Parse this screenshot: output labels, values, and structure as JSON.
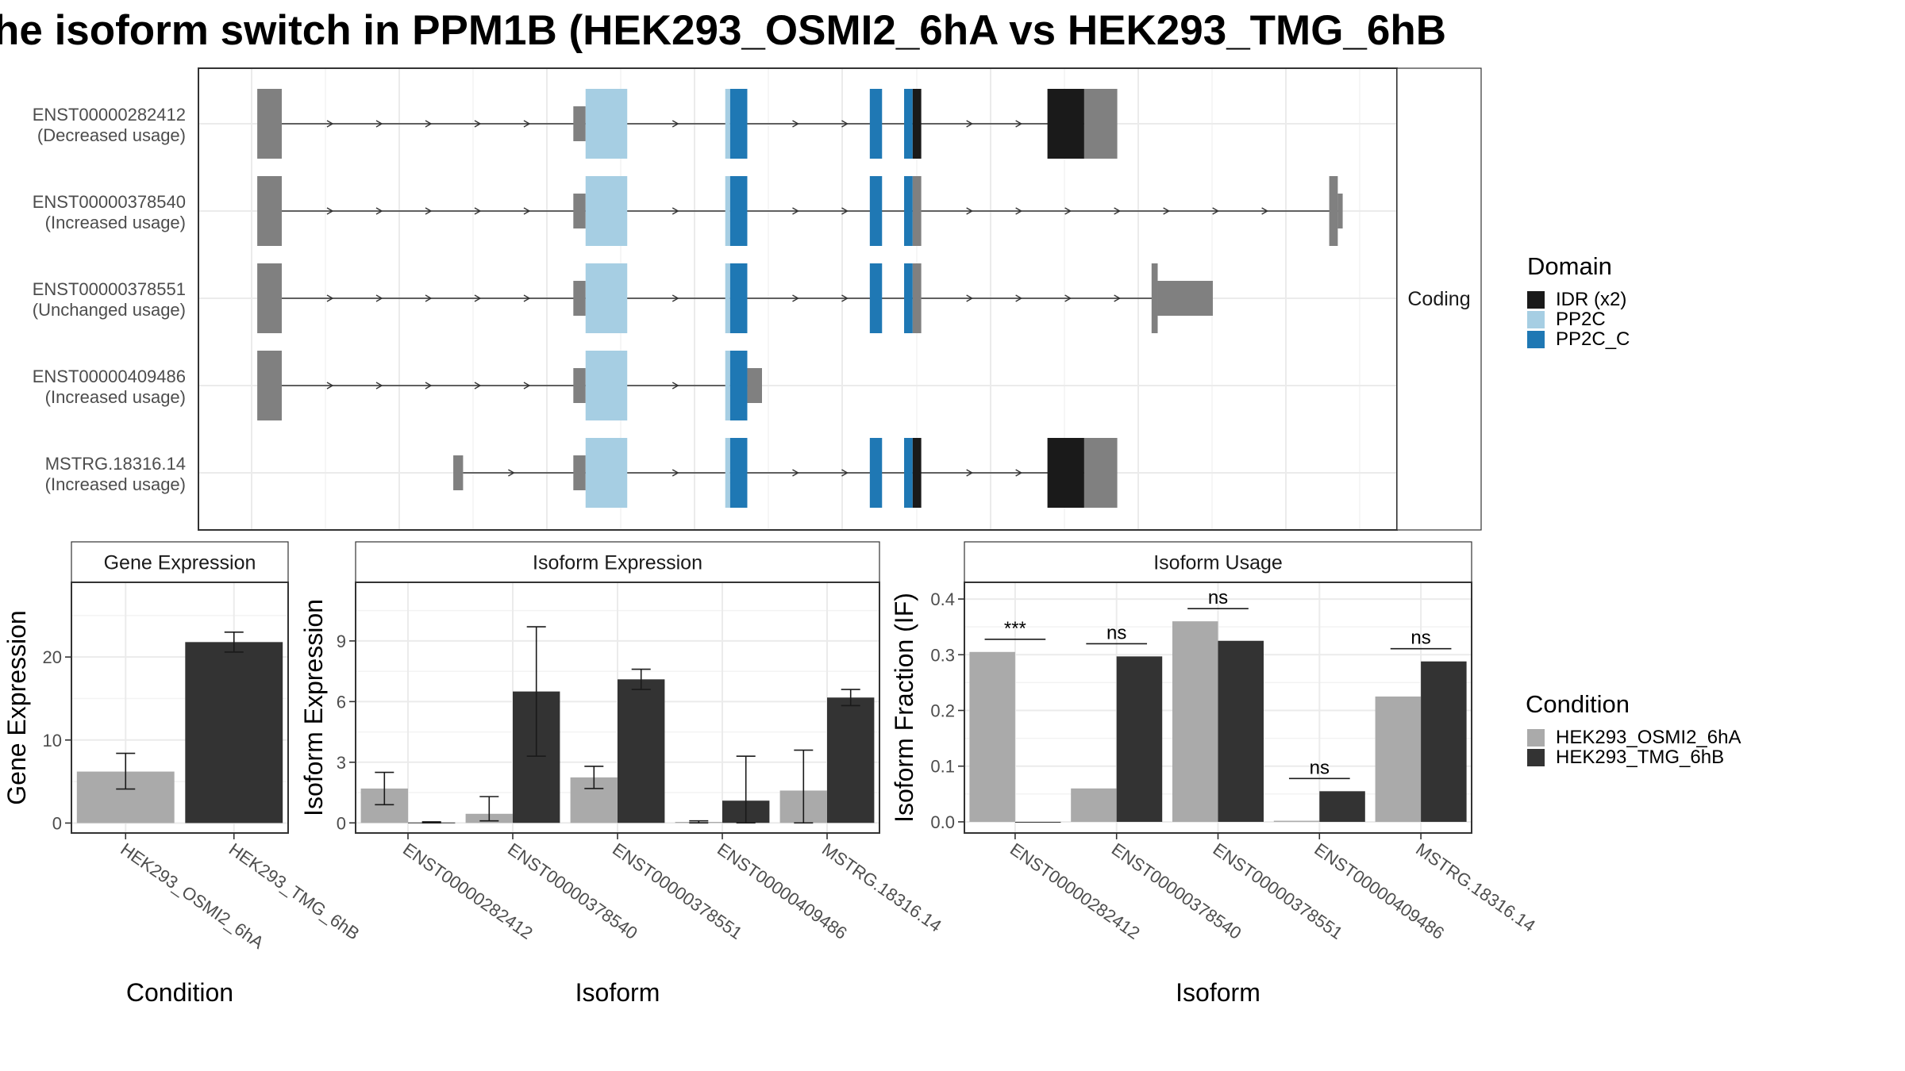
{
  "title": "he isoform switch in PPM1B (HEK293_OSMI2_6hA vs HEK293_TMG_6hB",
  "colors": {
    "gray_exon": "#808080",
    "idr": "#1a1a1a",
    "pp2c": "#a6cee3",
    "pp2c_c": "#1f78b4",
    "cond_a": "#aaaaaa",
    "cond_b": "#333333",
    "grid": "#ebebeb",
    "strip_bg": "#ffffff"
  },
  "structure": {
    "strip_label": "Coding",
    "transcripts": [
      {
        "id": "ENST00000282412",
        "usage": "(Decreased usage)",
        "exons": [
          [
            210,
            230
          ],
          [
            468,
            478
          ],
          [
            478,
            512
          ],
          [
            592,
            596
          ],
          [
            596,
            610
          ],
          [
            710,
            720
          ],
          [
            738,
            745
          ],
          [
            745,
            752
          ],
          [
            855,
            885
          ],
          [
            885,
            912
          ]
        ],
        "colors": [
          "gray",
          "gray",
          "pp2c",
          "pp2c",
          "pp2c_c",
          "pp2c_c",
          "pp2c_c",
          "idr",
          "idr",
          "gray"
        ],
        "half": [
          false,
          true,
          false,
          false,
          false,
          false,
          false,
          false,
          false,
          false
        ]
      },
      {
        "id": "ENST00000378540",
        "usage": "(Increased usage)",
        "exons": [
          [
            210,
            230
          ],
          [
            468,
            478
          ],
          [
            478,
            512
          ],
          [
            592,
            596
          ],
          [
            596,
            610
          ],
          [
            710,
            720
          ],
          [
            738,
            745
          ],
          [
            745,
            752
          ],
          [
            1085,
            1092
          ],
          [
            1092,
            1096
          ]
        ],
        "colors": [
          "gray",
          "gray",
          "pp2c",
          "pp2c",
          "pp2c_c",
          "pp2c_c",
          "pp2c_c",
          "gray",
          "gray",
          "gray"
        ],
        "half": [
          false,
          true,
          false,
          false,
          false,
          false,
          false,
          false,
          false,
          true
        ]
      },
      {
        "id": "ENST00000378551",
        "usage": "(Unchanged usage)",
        "exons": [
          [
            210,
            230
          ],
          [
            468,
            478
          ],
          [
            478,
            512
          ],
          [
            592,
            596
          ],
          [
            596,
            610
          ],
          [
            710,
            720
          ],
          [
            738,
            745
          ],
          [
            745,
            752
          ],
          [
            940,
            945
          ],
          [
            945,
            990
          ]
        ],
        "colors": [
          "gray",
          "gray",
          "pp2c",
          "pp2c",
          "pp2c_c",
          "pp2c_c",
          "pp2c_c",
          "gray",
          "gray",
          "gray"
        ],
        "half": [
          false,
          true,
          false,
          false,
          false,
          false,
          false,
          false,
          false,
          true
        ]
      },
      {
        "id": "ENST00000409486",
        "usage": "(Increased usage)",
        "exons": [
          [
            210,
            230
          ],
          [
            468,
            478
          ],
          [
            478,
            512
          ],
          [
            592,
            596
          ],
          [
            596,
            610
          ],
          [
            610,
            622
          ]
        ],
        "colors": [
          "gray",
          "gray",
          "pp2c",
          "pp2c",
          "pp2c_c",
          "gray"
        ],
        "half": [
          false,
          true,
          false,
          false,
          false,
          true
        ]
      },
      {
        "id": "MSTRG.18316.14",
        "usage": "(Increased usage)",
        "exons": [
          [
            370,
            378
          ],
          [
            468,
            478
          ],
          [
            478,
            512
          ],
          [
            592,
            596
          ],
          [
            596,
            610
          ],
          [
            710,
            720
          ],
          [
            738,
            745
          ],
          [
            745,
            752
          ],
          [
            855,
            885
          ],
          [
            885,
            912
          ]
        ],
        "colors": [
          "gray",
          "gray",
          "pp2c",
          "pp2c",
          "pp2c_c",
          "pp2c_c",
          "pp2c_c",
          "idr",
          "idr",
          "gray"
        ],
        "half": [
          true,
          true,
          false,
          false,
          false,
          false,
          false,
          false,
          false,
          false
        ]
      }
    ]
  },
  "legends": {
    "domain_title": "Domain",
    "domain_items": [
      {
        "label": "IDR (x2)",
        "color_key": "idr"
      },
      {
        "label": "PP2C",
        "color_key": "pp2c"
      },
      {
        "label": "PP2C_C",
        "color_key": "pp2c_c"
      }
    ],
    "condition_title": "Condition",
    "condition_items": [
      {
        "label": "HEK293_OSMI2_6hA",
        "color_key": "cond_a"
      },
      {
        "label": "HEK293_TMG_6hB",
        "color_key": "cond_b"
      }
    ]
  },
  "chart_data": [
    {
      "type": "bar",
      "panel": "Gene Expression",
      "xlabel": "Condition",
      "ylabel": "Gene Expression",
      "categories": [
        "HEK293_OSMI2_6hA",
        "HEK293_TMG_6hB"
      ],
      "values": [
        6.2,
        21.8
      ],
      "errors": [
        [
          4.1,
          8.4
        ],
        [
          20.6,
          23.0
        ]
      ],
      "yticks": [
        0,
        10,
        20
      ],
      "ylim": [
        -1.2,
        29
      ]
    },
    {
      "type": "bar",
      "panel": "Isoform Expression",
      "xlabel": "Isoform",
      "ylabel": "Isoform Expression",
      "categories": [
        "ENST00000282412",
        "ENST00000378540",
        "ENST00000378551",
        "ENST00000409486",
        "MSTRG.18316.14"
      ],
      "series": [
        {
          "name": "HEK293_OSMI2_6hA",
          "values": [
            1.7,
            0.45,
            2.25,
            0.05,
            1.6
          ],
          "errors": [
            [
              0.9,
              2.5
            ],
            [
              0.1,
              1.3
            ],
            [
              1.7,
              2.8
            ],
            [
              0.0,
              0.1
            ],
            [
              0.0,
              3.6
            ]
          ]
        },
        {
          "name": "HEK293_TMG_6hB",
          "values": [
            0.02,
            6.5,
            7.1,
            1.1,
            6.2
          ],
          "errors": [
            [
              0.0,
              0.05
            ],
            [
              3.3,
              9.7
            ],
            [
              6.6,
              7.6
            ],
            [
              0.0,
              3.3
            ],
            [
              5.8,
              6.6
            ]
          ]
        }
      ],
      "yticks": [
        0,
        3,
        6,
        9
      ],
      "ylim": [
        -0.5,
        11.9
      ]
    },
    {
      "type": "bar",
      "panel": "Isoform Usage",
      "xlabel": "Isoform",
      "ylabel": "Isoform Fraction (IF)",
      "categories": [
        "ENST00000282412",
        "ENST00000378540",
        "ENST00000378551",
        "ENST00000409486",
        "MSTRG.18316.14"
      ],
      "series": [
        {
          "name": "HEK293_OSMI2_6hA",
          "values": [
            0.305,
            0.06,
            0.36,
            0.002,
            0.225
          ]
        },
        {
          "name": "HEK293_TMG_6hB",
          "values": [
            0.0,
            0.297,
            0.325,
            0.055,
            0.288
          ]
        }
      ],
      "significance": [
        "***",
        "ns",
        "ns",
        "ns",
        "ns"
      ],
      "yticks": [
        "0.0",
        "0.1",
        "0.2",
        "0.3",
        "0.4"
      ],
      "ylim": [
        -0.02,
        0.43
      ]
    }
  ]
}
